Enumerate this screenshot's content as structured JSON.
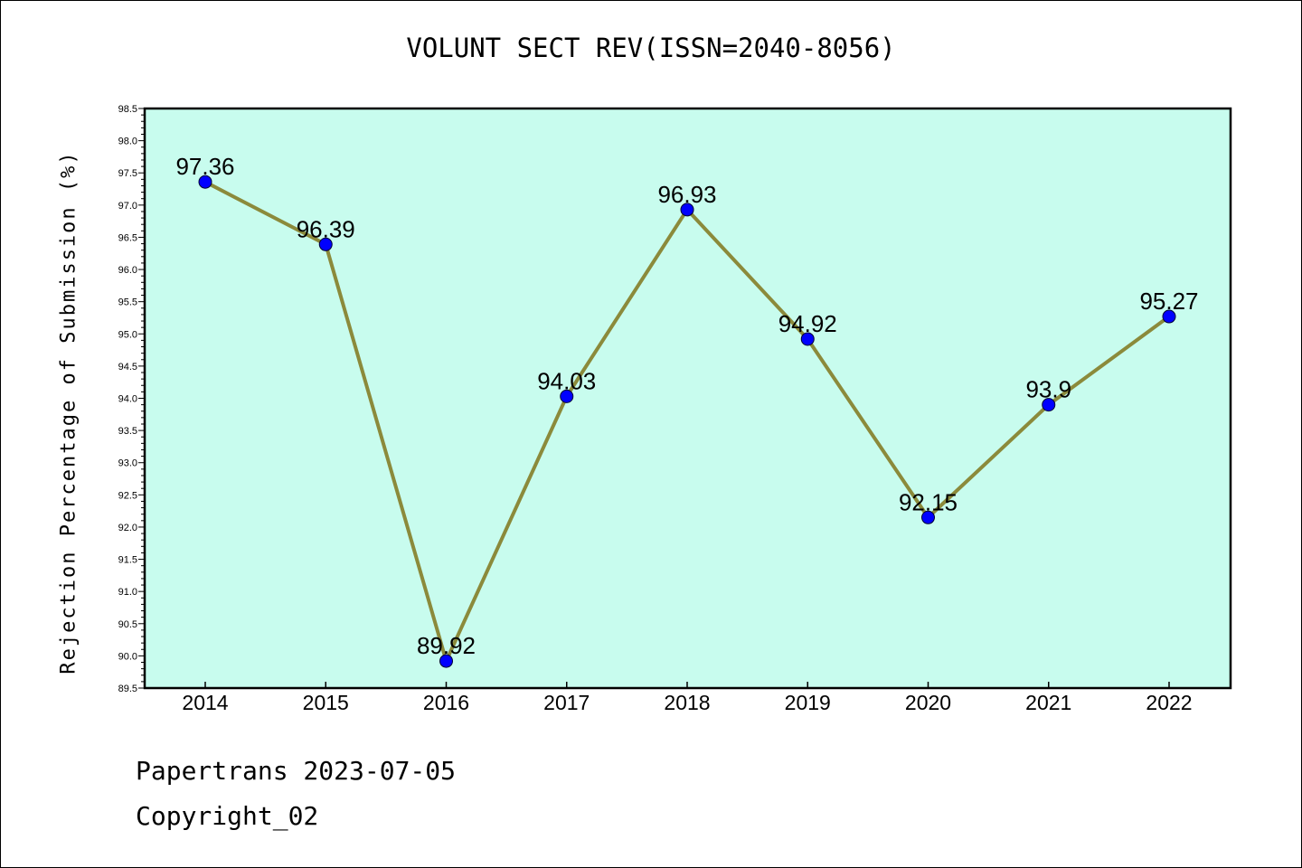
{
  "chart_data": {
    "type": "line",
    "title": "VOLUNT SECT REV(ISSN=2040-8056)",
    "ylabel": "Rejection Percentage of Submission (%)",
    "xlabel": "",
    "x": [
      "2014",
      "2015",
      "2016",
      "2017",
      "2018",
      "2019",
      "2020",
      "2021",
      "2022"
    ],
    "series": [
      {
        "values": [
          97.36,
          96.39,
          89.92,
          94.03,
          96.93,
          94.92,
          92.15,
          93.9,
          95.27
        ],
        "data_labels": [
          "97.36",
          "96.39",
          "89.92",
          "94.03",
          "96.93",
          "94.92",
          "92.15",
          "93.9",
          "95.27"
        ]
      }
    ],
    "ylim": [
      89.5,
      98.5
    ],
    "yticks": [
      "89.5",
      "90.0",
      "90.5",
      "91.0",
      "91.5",
      "92.0",
      "92.5",
      "93.0",
      "93.5",
      "94.0",
      "94.5",
      "95.0",
      "95.5",
      "96.0",
      "96.5",
      "97.0",
      "97.5",
      "98.0",
      "98.5"
    ],
    "grid": false,
    "colors": {
      "plot_background": "#c8fcee",
      "line": "#8b8a3b",
      "marker": "#0000ff"
    }
  },
  "footer": {
    "line1": "Papertrans 2023-07-05",
    "line2": "Copyright_02"
  }
}
